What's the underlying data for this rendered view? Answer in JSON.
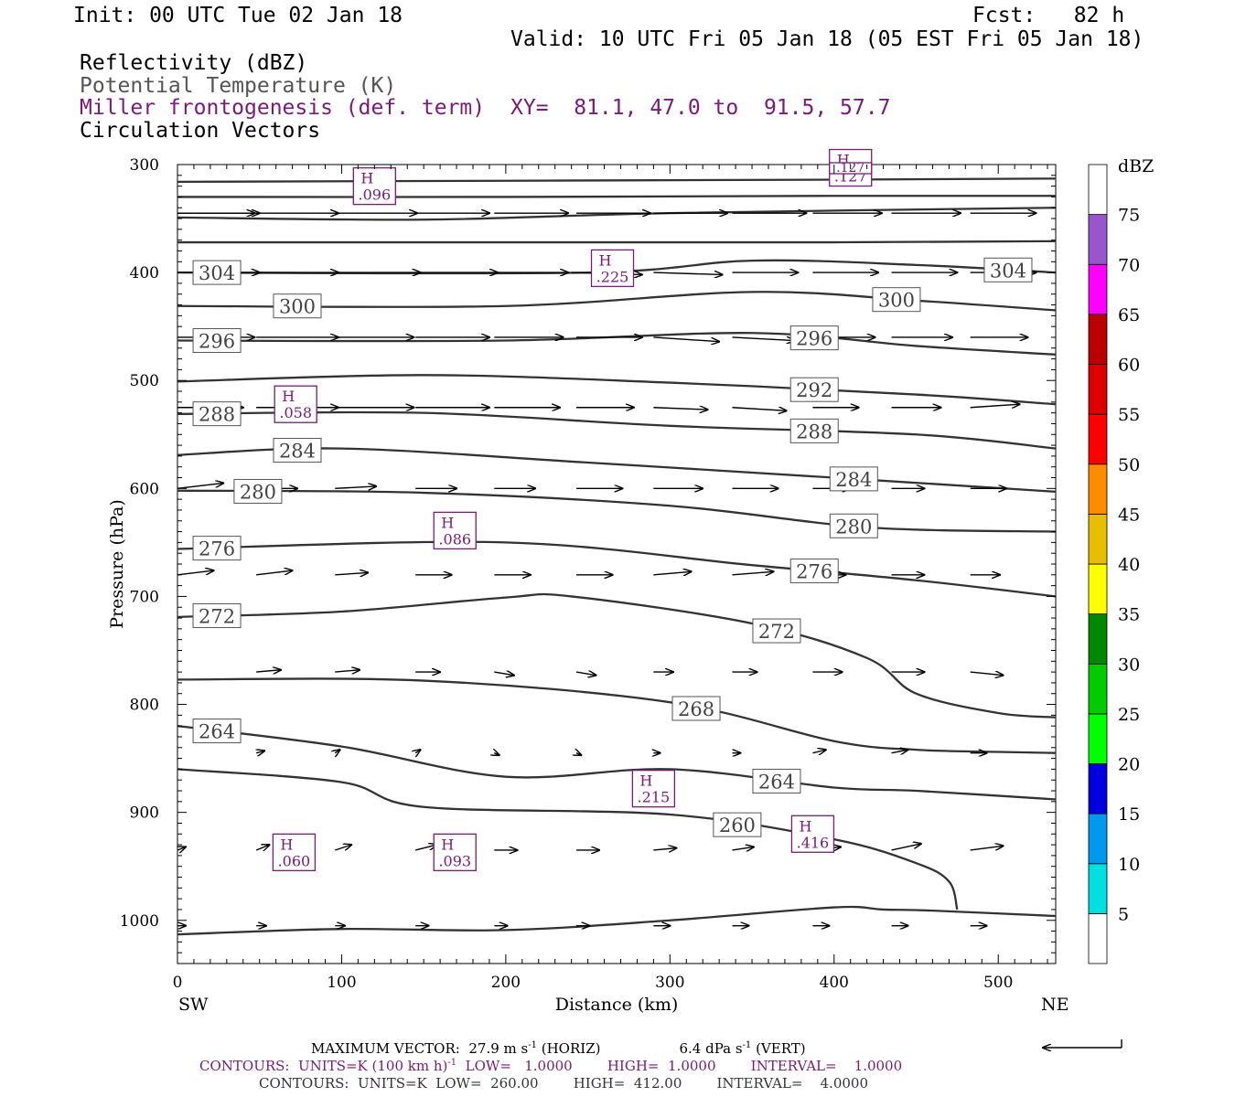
{
  "header": {
    "init": "Init: 00 UTC Tue 02 Jan 18",
    "fcst": "Fcst:   82 h",
    "valid": "Valid: 10 UTC Fri 05 Jan 18 (05 EST Fri 05 Jan 18)",
    "field1": "Reflectivity (dBZ)",
    "field2": "Potential Temperature (K)",
    "field3": "Miller frontogenesis (def. term)",
    "xy": "XY=  81.1, 47.0 to  91.5, 57.7",
    "field4": "Circulation Vectors"
  },
  "colors": {
    "frontogenesis": "#7a1a7a",
    "theta_line": "#333333",
    "vector": "#000000"
  },
  "chart_data": {
    "type": "line",
    "title": "",
    "xlabel": "Distance (km)",
    "ylabel": "Pressure (hPa)",
    "xlim": [
      0,
      535
    ],
    "ylim": [
      1040,
      300
    ],
    "x_ticks": [
      0,
      100,
      200,
      300,
      400,
      500
    ],
    "y_ticks": [
      300,
      400,
      500,
      600,
      700,
      800,
      900,
      1000
    ],
    "left_end_label": "SW",
    "right_end_label": "NE",
    "theta_contours": [
      {
        "name": "top1",
        "label": "",
        "x": [
          0,
          200,
          400,
          535
        ],
        "y": [
          316,
          315,
          314,
          313
        ]
      },
      {
        "name": "top2",
        "label": "",
        "x": [
          0,
          200,
          400,
          535
        ],
        "y": [
          330,
          330,
          329,
          329
        ]
      },
      {
        "name": "top3",
        "label": "",
        "x": [
          0,
          150,
          300,
          535
        ],
        "y": [
          349,
          351,
          345,
          340
        ]
      },
      {
        "name": "top4",
        "label": "",
        "x": [
          0,
          200,
          400,
          535
        ],
        "y": [
          372,
          372,
          372,
          371
        ]
      },
      {
        "name": "304",
        "label": "304",
        "x": [
          0,
          250,
          350,
          450,
          535
        ],
        "y": [
          400,
          400,
          389,
          393,
          400
        ]
      },
      {
        "name": "300",
        "label": "300",
        "x": [
          0,
          200,
          350,
          450,
          535
        ],
        "y": [
          431,
          431,
          418,
          426,
          435
        ]
      },
      {
        "name": "296",
        "label": "296",
        "x": [
          0,
          200,
          350,
          450,
          535
        ],
        "y": [
          463,
          463,
          456,
          468,
          476
        ]
      },
      {
        "name": "292",
        "label": "292",
        "x": [
          0,
          150,
          300,
          450,
          535
        ],
        "y": [
          501,
          495,
          502,
          513,
          522
        ]
      },
      {
        "name": "288",
        "label": "288",
        "x": [
          0,
          150,
          300,
          450,
          535
        ],
        "y": [
          531,
          530,
          542,
          550,
          563
        ]
      },
      {
        "name": "284",
        "label": "284",
        "x": [
          0,
          100,
          250,
          400,
          535
        ],
        "y": [
          569,
          563,
          576,
          590,
          603
        ]
      },
      {
        "name": "280",
        "label": "280",
        "x": [
          0,
          150,
          300,
          420,
          535
        ],
        "y": [
          602,
          604,
          616,
          636,
          640
        ]
      },
      {
        "name": "276",
        "label": "276",
        "x": [
          0,
          200,
          350,
          450,
          535
        ],
        "y": [
          656,
          650,
          671,
          685,
          700
        ]
      },
      {
        "name": "272",
        "label": "272",
        "x": [
          0,
          100,
          200,
          240,
          350,
          420,
          450,
          500,
          535
        ],
        "y": [
          719,
          714,
          701,
          700,
          725,
          757,
          790,
          808,
          812
        ]
      },
      {
        "name": "268",
        "label": "268",
        "x": [
          0,
          150,
          300,
          400,
          450,
          500,
          535
        ],
        "y": [
          777,
          778,
          798,
          834,
          842,
          844,
          845
        ]
      },
      {
        "name": "264",
        "label": "264",
        "x": [
          0,
          100,
          200,
          300,
          400,
          450,
          535
        ],
        "y": [
          820,
          839,
          867,
          860,
          877,
          880,
          888
        ]
      },
      {
        "name": "260",
        "label": "260",
        "x": [
          0,
          100,
          150,
          300,
          400,
          450,
          470,
          475
        ],
        "y": [
          860,
          872,
          895,
          902,
          925,
          947,
          964,
          990
        ]
      },
      {
        "name": "sfc",
        "label": "",
        "x": [
          0,
          100,
          200,
          300,
          400,
          430,
          460,
          535
        ],
        "y": [
          1013,
          1008,
          1009,
          1000,
          988,
          990,
          991,
          996
        ]
      }
    ],
    "frontogenesis_maxima": [
      {
        "tag": "H",
        "value": ".096",
        "x": 120,
        "y": 320
      },
      {
        "tag": "H",
        "value": ".225",
        "x": 265,
        "y": 396
      },
      {
        "tag": "H",
        "value": ".058",
        "x": 72,
        "y": 522
      },
      {
        "tag": "H",
        "value": ".086",
        "x": 169,
        "y": 639
      },
      {
        "tag": "H",
        "value": ".215",
        "x": 290,
        "y": 878
      },
      {
        "tag": "H",
        "value": ".060",
        "x": 71,
        "y": 937
      },
      {
        "tag": "H",
        "value": ".093",
        "x": 169,
        "y": 937
      },
      {
        "tag": "H",
        "value": ".416",
        "x": 387,
        "y": 920
      },
      {
        "tag": "H",
        "value": ".127",
        "x": 410,
        "y": 303
      }
    ],
    "vectors": [
      {
        "p": 345,
        "items": [
          [
            0,
            345,
            47,
            0
          ],
          [
            0,
            345,
            50,
            0
          ],
          [
            48,
            345,
            50,
            0
          ],
          [
            96,
            345,
            50,
            0
          ],
          [
            145,
            345,
            45,
            0
          ],
          [
            193,
            345,
            45,
            0
          ],
          [
            243,
            345,
            45,
            0
          ],
          [
            290,
            345,
            45,
            0
          ],
          [
            338,
            345,
            45,
            0
          ],
          [
            387,
            345,
            42,
            0
          ],
          [
            435,
            345,
            42,
            0
          ],
          [
            483,
            345,
            40,
            0
          ]
        ]
      },
      {
        "p": 400,
        "items": [
          [
            0,
            400,
            50,
            0
          ],
          [
            48,
            400,
            50,
            0
          ],
          [
            96,
            400,
            52,
            0
          ],
          [
            145,
            400,
            50,
            0
          ],
          [
            193,
            400,
            45,
            0
          ],
          [
            240,
            400,
            43,
            2
          ],
          [
            290,
            400,
            42,
            2
          ],
          [
            338,
            400,
            40,
            0
          ],
          [
            387,
            400,
            40,
            0
          ],
          [
            435,
            400,
            40,
            0
          ],
          [
            483,
            400,
            40,
            0
          ]
        ]
      },
      {
        "p": 460,
        "items": [
          [
            0,
            460,
            47,
            0
          ],
          [
            48,
            460,
            50,
            0
          ],
          [
            96,
            460,
            48,
            0
          ],
          [
            145,
            460,
            45,
            0
          ],
          [
            193,
            460,
            42,
            0
          ],
          [
            243,
            460,
            40,
            0
          ],
          [
            290,
            460,
            40,
            4
          ],
          [
            338,
            460,
            38,
            3
          ],
          [
            387,
            460,
            38,
            0
          ],
          [
            435,
            460,
            37,
            0
          ],
          [
            483,
            460,
            35,
            0
          ]
        ]
      },
      {
        "p": 525,
        "items": [
          [
            0,
            525,
            40,
            0
          ],
          [
            48,
            525,
            50,
            0
          ],
          [
            96,
            525,
            48,
            0
          ],
          [
            145,
            525,
            45,
            0
          ],
          [
            193,
            525,
            40,
            0
          ],
          [
            243,
            525,
            35,
            0
          ],
          [
            290,
            525,
            33,
            2
          ],
          [
            338,
            525,
            33,
            3
          ],
          [
            387,
            525,
            28,
            0
          ],
          [
            435,
            525,
            30,
            0
          ],
          [
            483,
            525,
            30,
            -3
          ]
        ]
      },
      {
        "p": 600,
        "items": [
          [
            0,
            600,
            28,
            -5
          ],
          [
            48,
            600,
            25,
            0
          ],
          [
            96,
            600,
            25,
            -2
          ],
          [
            145,
            600,
            25,
            0
          ],
          [
            193,
            600,
            25,
            0
          ],
          [
            243,
            600,
            28,
            0
          ],
          [
            290,
            600,
            30,
            0
          ],
          [
            338,
            600,
            28,
            0
          ],
          [
            387,
            600,
            23,
            0
          ],
          [
            435,
            600,
            20,
            0
          ],
          [
            483,
            600,
            22,
            0
          ]
        ]
      },
      {
        "p": 680,
        "items": [
          [
            0,
            680,
            22,
            -4
          ],
          [
            48,
            680,
            22,
            -4
          ],
          [
            96,
            680,
            20,
            -2
          ],
          [
            145,
            680,
            22,
            0
          ],
          [
            193,
            680,
            22,
            0
          ],
          [
            243,
            680,
            22,
            0
          ],
          [
            290,
            680,
            23,
            -3
          ],
          [
            338,
            680,
            25,
            -3
          ],
          [
            387,
            680,
            20,
            0
          ],
          [
            435,
            680,
            20,
            0
          ],
          [
            483,
            680,
            18,
            0
          ]
        ]
      },
      {
        "p": 770,
        "items": [
          [
            48,
            770,
            15,
            -2
          ],
          [
            96,
            770,
            15,
            -2
          ],
          [
            145,
            770,
            15,
            0
          ],
          [
            193,
            770,
            12,
            3
          ],
          [
            243,
            770,
            12,
            3
          ],
          [
            290,
            770,
            12,
            0
          ],
          [
            338,
            770,
            15,
            0
          ],
          [
            387,
            770,
            18,
            0
          ],
          [
            435,
            770,
            20,
            0
          ],
          [
            483,
            770,
            20,
            3
          ]
        ]
      },
      {
        "p": 845,
        "items": [
          [
            48,
            845,
            5,
            -2
          ],
          [
            96,
            845,
            3,
            -3
          ],
          [
            145,
            845,
            3,
            -3
          ],
          [
            193,
            845,
            3,
            2
          ],
          [
            243,
            845,
            3,
            2
          ],
          [
            290,
            845,
            4,
            0
          ],
          [
            338,
            845,
            5,
            0
          ],
          [
            387,
            845,
            8,
            -3
          ],
          [
            435,
            845,
            10,
            -3
          ],
          [
            483,
            845,
            10,
            0
          ]
        ]
      },
      {
        "p": 935,
        "items": [
          [
            0,
            935,
            5,
            -3
          ],
          [
            48,
            935,
            8,
            -5
          ],
          [
            96,
            935,
            10,
            -5
          ],
          [
            145,
            935,
            13,
            -5
          ],
          [
            193,
            935,
            14,
            0
          ],
          [
            243,
            935,
            14,
            0
          ],
          [
            290,
            935,
            14,
            -2
          ],
          [
            338,
            935,
            13,
            -3
          ],
          [
            387,
            935,
            17,
            -3
          ],
          [
            435,
            935,
            18,
            -6
          ],
          [
            483,
            935,
            20,
            -4
          ]
        ]
      },
      {
        "p": 1005,
        "items": [
          [
            0,
            1005,
            5,
            0
          ],
          [
            48,
            1005,
            6,
            0
          ],
          [
            96,
            1005,
            6,
            0
          ],
          [
            145,
            1005,
            8,
            0
          ],
          [
            193,
            1005,
            8,
            0
          ],
          [
            243,
            1005,
            8,
            0
          ],
          [
            290,
            1005,
            10,
            0
          ],
          [
            338,
            1005,
            10,
            0
          ],
          [
            387,
            1005,
            10,
            0
          ],
          [
            435,
            1005,
            10,
            0
          ],
          [
            483,
            1005,
            10,
            0
          ]
        ]
      }
    ],
    "colorbar": {
      "unit": "dBZ",
      "levels": [
        "5",
        "10",
        "15",
        "20",
        "25",
        "30",
        "35",
        "40",
        "45",
        "50",
        "55",
        "60",
        "65",
        "70",
        "75"
      ],
      "colors": [
        "#ffffff",
        "#00e0e0",
        "#0099ee",
        "#0000dd",
        "#00ff00",
        "#00cc00",
        "#008800",
        "#ffff00",
        "#e6c000",
        "#ff8c00",
        "#ff0000",
        "#dd0000",
        "#bb0000",
        "#ff00ff",
        "#9955cc",
        "#ffffff"
      ]
    }
  },
  "footer": {
    "line1a": "MAXIMUM VECTOR:  27.9 m s",
    "line1a_sup": "-1",
    "line1b": " (HORIZ)",
    "line1c": "6.4 dPa s",
    "line1c_sup": "-1",
    "line1d": " (VERT)",
    "line2a": "CONTOURS:  UNITS=K (100 km h)",
    "line2a_sup": "-1",
    "line2b": "  LOW=   1.0000        HIGH=  1.0000        INTERVAL=    1.0000",
    "line3": "CONTOURS:  UNITS=K  LOW=  260.00        HIGH=  412.00        INTERVAL=    4.0000"
  }
}
